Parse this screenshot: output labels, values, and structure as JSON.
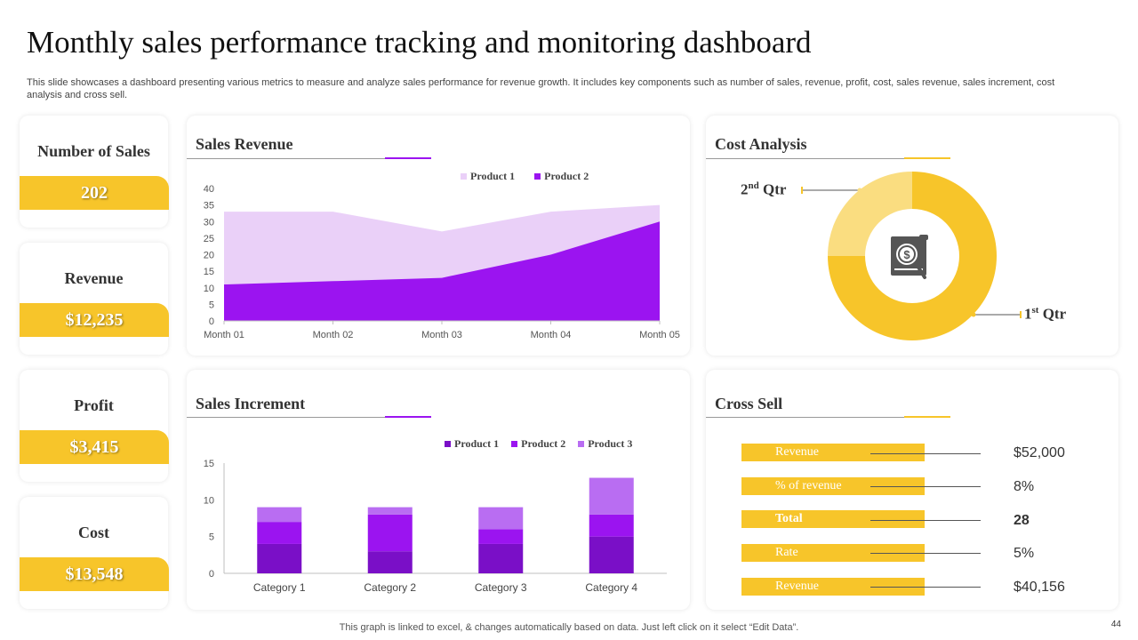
{
  "header": {
    "title": "Monthly sales performance tracking and monitoring dashboard",
    "subtitle": "This slide showcases a dashboard presenting various metrics to measure and analyze sales performance for revenue growth. It includes key components such as number of sales, revenue, profit, cost, sales revenue, sales increment, cost analysis and cross sell."
  },
  "colors": {
    "accent_yellow": "#f7c52a",
    "purple_dark": "#7a0fc7",
    "purple_mid": "#9b14f0",
    "purple_light": "#b96df2",
    "lavender": "#ead0f8"
  },
  "kpis": [
    {
      "label": "Number of Sales",
      "value": "202"
    },
    {
      "label": "Revenue",
      "value": "$12,235"
    },
    {
      "label": "Profit",
      "value": "$3,415"
    },
    {
      "label": "Cost",
      "value": "$13,548"
    }
  ],
  "panels": {
    "sales_revenue": {
      "title": "Sales Revenue"
    },
    "cost_analysis": {
      "title": "Cost Analysis",
      "icon": "dollar-analysis-icon"
    },
    "sales_increment": {
      "title": "Sales Increment"
    },
    "cross_sell": {
      "title": "Cross Sell"
    }
  },
  "chart_data": [
    {
      "type": "area",
      "x": [
        "Month 01",
        "Month 02",
        "Month 03",
        "Month 04",
        "Month 05"
      ],
      "series": [
        {
          "name": "Product 1",
          "values": [
            33,
            33,
            27,
            33,
            35
          ]
        },
        {
          "name": "Product 2",
          "values": [
            11,
            12,
            13,
            20,
            30
          ]
        }
      ],
      "ylim": [
        0,
        40
      ],
      "yticks": [
        "0",
        "5",
        "10",
        "15",
        "20",
        "25",
        "30",
        "35",
        "40"
      ],
      "legend": "top-right"
    },
    {
      "type": "pie",
      "categories": [
        "1st Qtr",
        "2nd Qtr"
      ],
      "values": [
        75,
        25
      ],
      "labels": [
        {
          "main": "1",
          "sup": "st",
          "rest": " Qtr"
        },
        {
          "main": "2",
          "sup": "nd",
          "rest": " Qtr"
        }
      ]
    },
    {
      "type": "bar",
      "stacked": true,
      "categories": [
        "Category 1",
        "Category 2",
        "Category 3",
        "Category 4"
      ],
      "series": [
        {
          "name": "Product 1",
          "values": [
            4,
            3,
            4,
            5
          ]
        },
        {
          "name": "Product 2",
          "values": [
            3,
            5,
            2,
            3
          ]
        },
        {
          "name": "Product 3",
          "values": [
            2,
            1,
            3,
            5
          ]
        }
      ],
      "ylim": [
        0,
        15
      ],
      "yticks": [
        "0",
        "5",
        "10",
        "15"
      ],
      "legend": "top-right"
    }
  ],
  "cross_sell": [
    {
      "label": "Revenue",
      "value": "$52,000",
      "bold": false
    },
    {
      "label": "% of revenue",
      "value": "8%",
      "bold": false
    },
    {
      "label": "Total",
      "value": "28",
      "bold": true
    },
    {
      "label": "Rate",
      "value": "5%",
      "bold": false
    },
    {
      "label": "Revenue",
      "value": "$40,156",
      "bold": false
    }
  ],
  "footer": {
    "note": "This graph is linked to excel,  & changes automatically based on data. Just left click on it select “Edit Data”.",
    "page": "44"
  }
}
